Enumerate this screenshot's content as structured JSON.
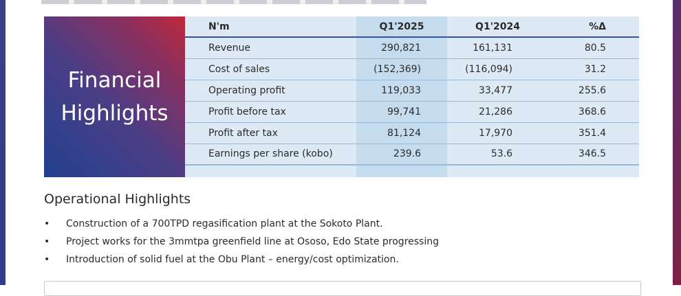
{
  "panel": {
    "title_line1": "Financial",
    "title_line2": "Highlights"
  },
  "table": {
    "headers": [
      "N'm",
      "Q1'2025",
      "Q1'2024",
      "%Δ"
    ],
    "rows": [
      [
        "Revenue",
        "290,821",
        "161,131",
        "80.5"
      ],
      [
        "Cost of sales",
        "(152,369)",
        "(116,094)",
        "31.2"
      ],
      [
        "Operating profit",
        "119,033",
        "33,477",
        "255.6"
      ],
      [
        "Profit before tax",
        "99,741",
        "21,286",
        "368.6"
      ],
      [
        "Profit after tax",
        "81,124",
        "17,970",
        "351.4"
      ],
      [
        "Earnings per share (kobo)",
        "239.6",
        "53.6",
        "346.5"
      ]
    ]
  },
  "operational": {
    "heading": "Operational Highlights",
    "bullet": "•",
    "items": [
      "Construction of a 700TPD regasification plant at the Sokoto Plant.",
      "Project works for the 3mmtpa greenfield line at Ososo, Edo State progressing",
      "Introduction of solid fuel at the Obu Plant – energy/cost optimization."
    ]
  },
  "colors": {
    "panel_gradient": [
      "#21418f",
      "#c0283a"
    ],
    "column_highlight": "#c5dcee",
    "table_bg": "#dde9f4",
    "header_rule": "#2f5597"
  }
}
